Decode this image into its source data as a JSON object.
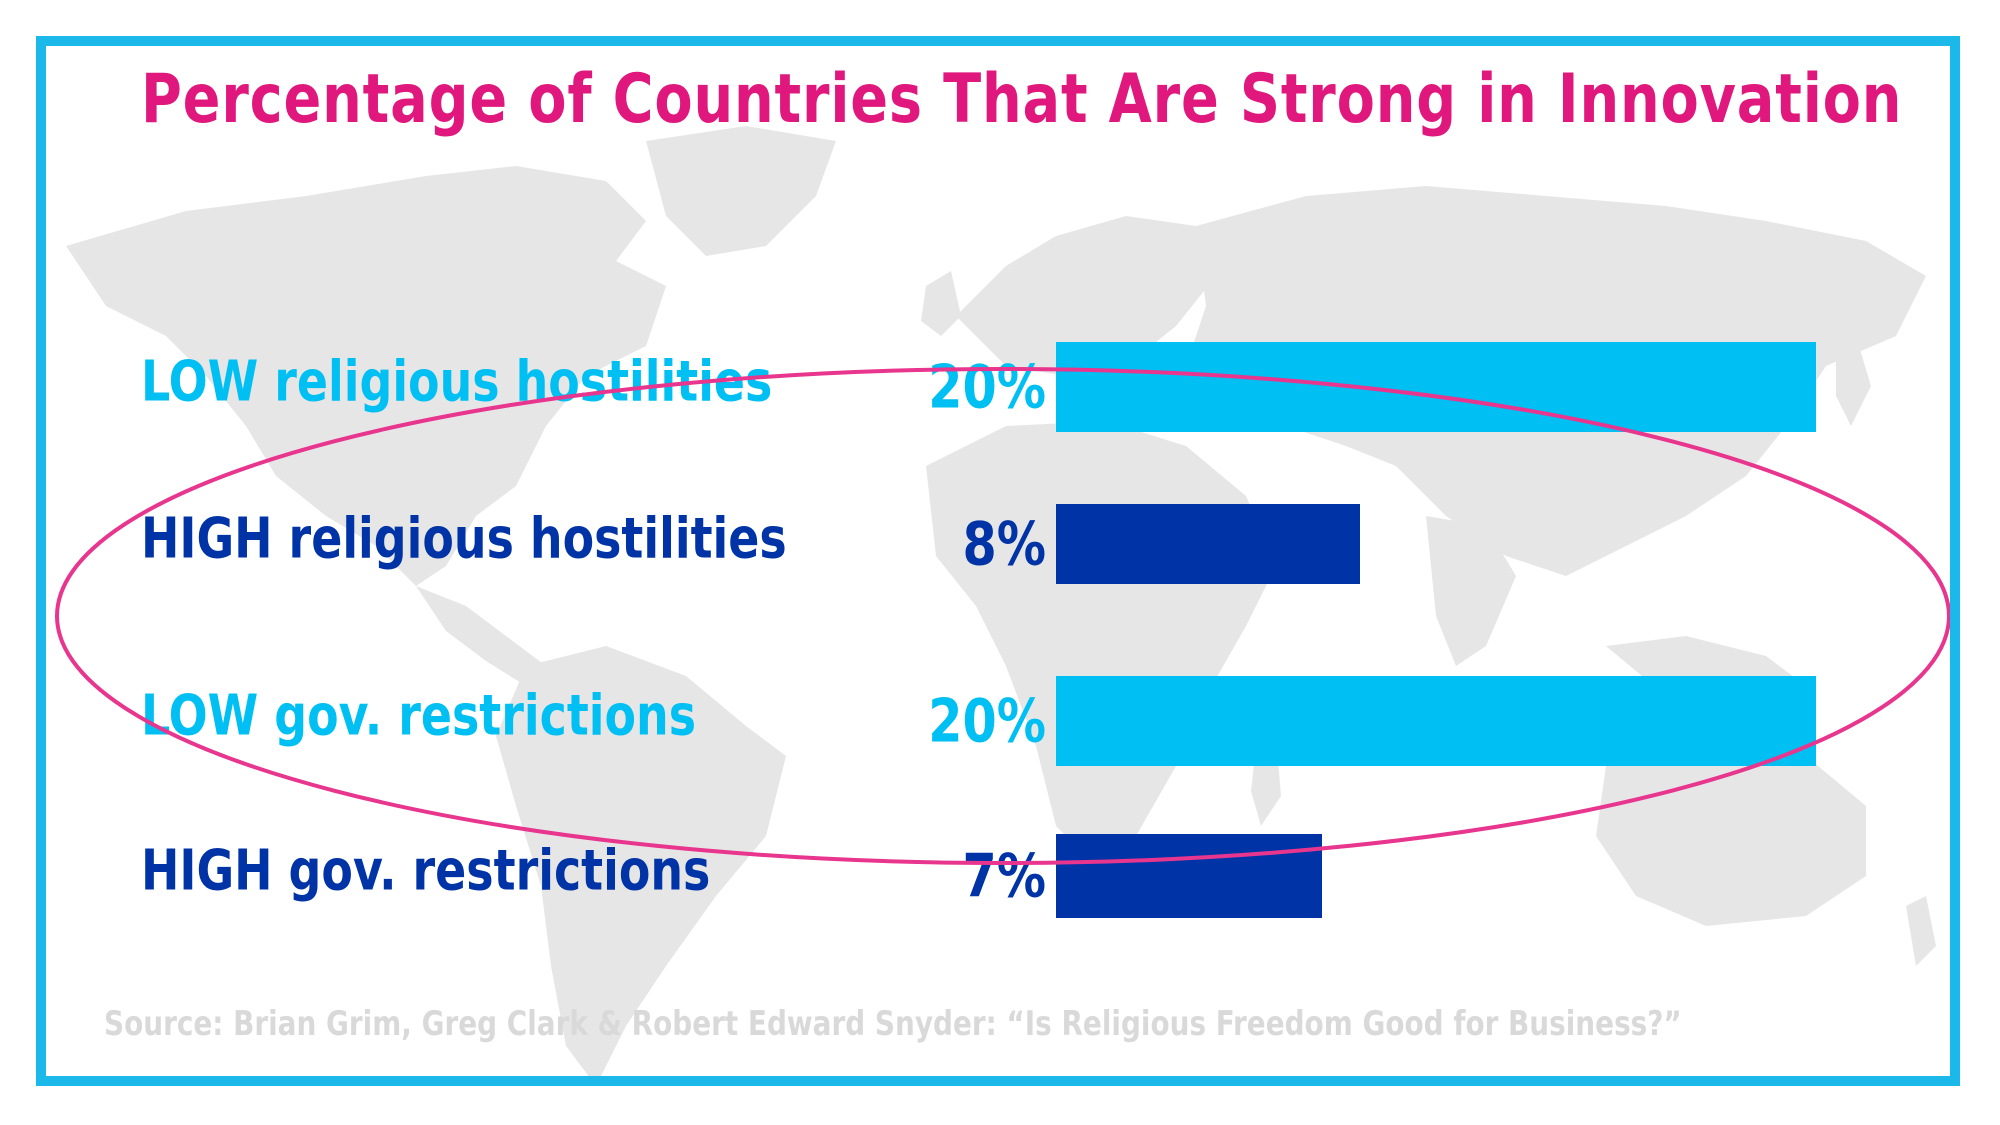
{
  "chart_data": {
    "type": "bar",
    "orientation": "horizontal",
    "title": "Percentage of Countries That Are Strong in Innovation",
    "categories": [
      "LOW religious hostilities",
      "HIGH religious hostilities",
      "LOW gov. restrictions",
      "HIGH gov. restrictions"
    ],
    "values": [
      20,
      8,
      20,
      7
    ],
    "value_labels": [
      "20%",
      "8%",
      "20%",
      "7%"
    ],
    "colors": [
      "#00bff2",
      "#0033a6",
      "#00bff2",
      "#0033a6"
    ],
    "xlim": [
      0,
      20
    ],
    "grid": false,
    "source": "Source: Brian Grim, Greg Clark & Robert Edward Snyder: “Is Religious Freedom Good for Business?”"
  },
  "style": {
    "frame_color": "#1ab9ea",
    "title_color": "#e0187d",
    "highlight_color": "#e8358e",
    "map_color": "#e6e6e6",
    "source_color": "#d9d9d9"
  },
  "background": {
    "icon": "world-map-icon"
  }
}
